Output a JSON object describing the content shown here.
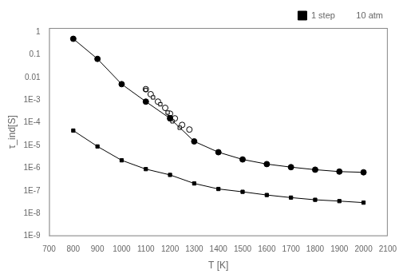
{
  "chart_data": {
    "type": "line",
    "xlabel": "T [K]",
    "ylabel": "τ_ind[S]",
    "log": "y",
    "grid": false,
    "legend": "upper right",
    "xlim": [
      700,
      2100
    ],
    "xticks": [
      700,
      800,
      900,
      1000,
      1100,
      1200,
      1300,
      1400,
      1500,
      1600,
      1700,
      1800,
      1900,
      2000,
      2100
    ],
    "ylim": [
      1e-09,
      1.5
    ],
    "yticks": [
      {
        "value": 1e-09,
        "label": "1E-9"
      },
      {
        "value": 1e-08,
        "label": "1E-8"
      },
      {
        "value": 1e-07,
        "label": "1E-7"
      },
      {
        "value": 1e-06,
        "label": "1E-6"
      },
      {
        "value": 1e-05,
        "label": "1E-5"
      },
      {
        "value": 0.0001,
        "label": "1E-4"
      },
      {
        "value": 0.001,
        "label": "1E-3"
      },
      0.01,
      0.1,
      1
    ],
    "series": [
      {
        "name": "1 step",
        "color": "#000000",
        "marker": "square",
        "line_style": "solid",
        "x": [
          800,
          900,
          1000,
          1100,
          1200,
          1300,
          1400,
          1500,
          1600,
          1700,
          1800,
          1900,
          2000
        ],
        "values": [
          4.5e-05,
          9e-06,
          2.2e-06,
          9e-07,
          5e-07,
          2.1e-07,
          1.2e-07,
          9e-08,
          6.5e-08,
          5e-08,
          4e-08,
          3.5e-08,
          3e-08
        ]
      },
      {
        "color": "#000000",
        "marker": "circle",
        "line_style": "solid",
        "x": [
          800,
          900,
          1000,
          1100,
          1200,
          1300,
          1400,
          1500,
          1600,
          1700,
          1800,
          1900,
          2000
        ],
        "values": [
          0.5,
          0.065,
          0.005,
          0.00085,
          0.000155,
          1.5e-05,
          5e-06,
          2.4e-06,
          1.5e-06,
          1.1e-06,
          8.5e-07,
          7e-07,
          6.5e-07
        ]
      },
      {
        "color": "#000000",
        "marker": "open_square",
        "line_style": "none",
        "x": [
          1100,
          1130,
          1160,
          1190,
          1200,
          1210,
          1240
        ],
        "values": [
          0.0028,
          0.0013,
          0.00065,
          0.00028,
          0.000175,
          0.000115,
          6e-05
        ]
      },
      {
        "color": "#000000",
        "marker": "open_circle",
        "line_style": "none",
        "x": [
          1100,
          1120,
          1150,
          1180,
          1200,
          1220,
          1250,
          1280
        ],
        "values": [
          0.003,
          0.0018,
          0.00085,
          0.00045,
          0.00025,
          0.000155,
          8e-05,
          5e-05
        ]
      }
    ],
    "annotations": [
      "10 atm"
    ]
  }
}
